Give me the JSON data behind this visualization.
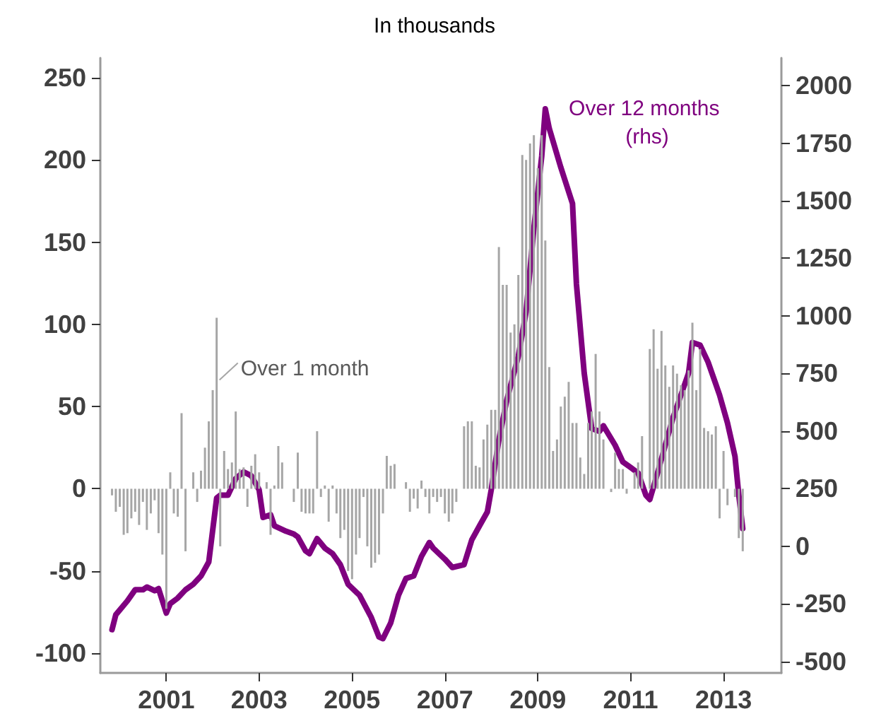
{
  "chart_data": {
    "type": "bar",
    "title": "In thousands",
    "x": [
      "1999-11",
      "1999-12",
      "2000-01",
      "2000-02",
      "2000-03",
      "2000-04",
      "2000-05",
      "2000-06",
      "2000-07",
      "2000-08",
      "2000-09",
      "2000-10",
      "2000-11",
      "2000-12",
      "2001-01",
      "2001-02",
      "2001-03",
      "2001-04",
      "2001-05",
      "2001-06",
      "2001-07",
      "2001-08",
      "2001-09",
      "2001-10",
      "2001-11",
      "2001-12",
      "2002-01",
      "2002-02",
      "2002-03",
      "2002-04",
      "2002-05",
      "2002-06",
      "2002-07",
      "2002-08",
      "2002-09",
      "2002-10",
      "2002-11",
      "2002-12",
      "2003-01",
      "2003-02",
      "2003-03",
      "2003-04",
      "2003-05",
      "2003-06",
      "2003-07",
      "2003-08",
      "2003-09",
      "2003-10",
      "2003-11",
      "2003-12",
      "2004-01",
      "2004-02",
      "2004-03",
      "2004-04",
      "2004-05",
      "2004-06",
      "2004-07",
      "2004-08",
      "2004-09",
      "2004-10",
      "2004-11",
      "2004-12",
      "2005-01",
      "2005-02",
      "2005-03",
      "2005-04",
      "2005-05",
      "2005-06",
      "2005-07",
      "2005-08",
      "2005-09",
      "2005-10",
      "2005-11",
      "2005-12",
      "2006-01",
      "2006-02",
      "2006-03",
      "2006-04",
      "2006-05",
      "2006-06",
      "2006-07",
      "2006-08",
      "2006-09",
      "2006-10",
      "2006-11",
      "2006-12",
      "2007-01",
      "2007-02",
      "2007-03",
      "2007-04",
      "2007-05",
      "2007-06",
      "2007-07",
      "2007-08",
      "2007-09",
      "2007-10",
      "2007-11",
      "2007-12",
      "2008-01",
      "2008-02",
      "2008-03",
      "2008-04",
      "2008-05",
      "2008-06",
      "2008-07",
      "2008-08",
      "2008-09",
      "2008-10",
      "2008-11",
      "2008-12",
      "2009-01",
      "2009-02",
      "2009-03",
      "2009-04",
      "2009-05",
      "2009-06",
      "2009-07",
      "2009-08",
      "2009-09",
      "2009-10",
      "2009-11",
      "2009-12",
      "2010-01",
      "2010-02",
      "2010-03",
      "2010-04",
      "2010-05",
      "2010-06",
      "2010-07",
      "2010-08",
      "2010-09",
      "2010-10",
      "2010-11",
      "2010-12",
      "2011-01",
      "2011-02",
      "2011-03",
      "2011-04",
      "2011-05",
      "2011-06",
      "2011-07",
      "2011-08",
      "2011-09",
      "2011-10",
      "2011-11",
      "2011-12",
      "2012-01",
      "2012-02",
      "2012-03",
      "2012-04",
      "2012-05",
      "2012-06",
      "2012-07",
      "2012-08",
      "2012-09",
      "2012-10",
      "2012-11",
      "2012-12",
      "2013-01",
      "2013-02",
      "2013-03",
      "2013-04",
      "2013-05",
      "2013-06"
    ],
    "xlim": [
      "1999-08",
      "2014-04"
    ],
    "xticks": [
      "2001",
      "2003",
      "2005",
      "2007",
      "2009",
      "2011",
      "2013"
    ],
    "ylim": [
      -112,
      262
    ],
    "yticks": [
      -100,
      -50,
      0,
      50,
      100,
      150,
      200,
      250
    ],
    "y2lim": [
      -550,
      2120
    ],
    "y2ticks": [
      -500,
      -250,
      0,
      250,
      500,
      750,
      1000,
      1250,
      1500,
      1750,
      2000
    ],
    "annotations": [
      {
        "text": "Over 1 month",
        "x": "2002-02",
        "y": 104
      }
    ],
    "series": [
      {
        "color": "#a6a6a6",
        "values": [
          -4,
          -14,
          -11,
          -28,
          -27,
          -18,
          -14,
          -22,
          -8,
          -25,
          -15,
          -7,
          -27,
          -40,
          -73,
          10,
          -15,
          -17,
          46,
          -38,
          0,
          10,
          -8,
          11,
          25,
          41,
          60,
          104,
          -35,
          23,
          12,
          16,
          47,
          12,
          13,
          -11,
          14,
          21,
          10,
          0,
          4,
          -28,
          2,
          26,
          16,
          0,
          0,
          -8,
          22,
          -14,
          -15,
          -15,
          -15,
          35,
          -5,
          2,
          -20,
          2,
          -15,
          -30,
          -25,
          -50,
          -55,
          -40,
          -30,
          -5,
          -35,
          -48,
          -45,
          -40,
          -15,
          20,
          14,
          15,
          0,
          0,
          4,
          -14,
          -6,
          -12,
          5,
          -5,
          -15,
          -5,
          -8,
          -5,
          -15,
          -20,
          -15,
          -8,
          0,
          38,
          41,
          41,
          14,
          13,
          30,
          39,
          48,
          48,
          147,
          124,
          124,
          95,
          100,
          130,
          203,
          200,
          210,
          215,
          195,
          215,
          151,
          74,
          23,
          30,
          50,
          56,
          65,
          40,
          40,
          19,
          9,
          40,
          47,
          82,
          47,
          30,
          0,
          -2,
          22,
          12,
          12,
          -3,
          0,
          10,
          16,
          32,
          0,
          85,
          97,
          73,
          96,
          75,
          62,
          75,
          70,
          63,
          60,
          72,
          101,
          60,
          85,
          37,
          35,
          33,
          38,
          -18,
          23,
          -10,
          0,
          -5,
          -30,
          -38
        ]
      },
      {
        "name": "Over 12 months (rhs)",
        "type": "line",
        "axis": "y2",
        "color": "#7f007f",
        "x": [
          "1999-11",
          "1999-12",
          "2000-03",
          "2000-05",
          "2000-07",
          "2000-08",
          "2000-10",
          "2000-11",
          "2001-01",
          "2001-02",
          "2001-04",
          "2001-06",
          "2001-08",
          "2001-10",
          "2001-12",
          "2002-02",
          "2002-03",
          "2002-05",
          "2002-07",
          "2002-09",
          "2002-11",
          "2003-01",
          "2003-02",
          "2003-04",
          "2003-05",
          "2003-08",
          "2003-10",
          "2003-11",
          "2004-01",
          "2004-02",
          "2004-04",
          "2004-06",
          "2004-08",
          "2004-10",
          "2004-12",
          "2005-03",
          "2005-06",
          "2005-08",
          "2005-09",
          "2005-11",
          "2006-01",
          "2006-03",
          "2006-05",
          "2006-07",
          "2006-09",
          "2006-10",
          "2007-01",
          "2007-03",
          "2007-06",
          "2007-08",
          "2007-10",
          "2007-12",
          "2008-01",
          "2008-03",
          "2008-05",
          "2008-08",
          "2008-10",
          "2008-12",
          "2009-02",
          "2009-03",
          "2009-04",
          "2009-07",
          "2009-10",
          "2009-11",
          "2010-01",
          "2010-03",
          "2010-05",
          "2010-06",
          "2010-09",
          "2010-11",
          "2011-01",
          "2011-03",
          "2011-05",
          "2011-06",
          "2011-08",
          "2011-10",
          "2011-12",
          "2012-02",
          "2012-04",
          "2012-05",
          "2012-07",
          "2012-09",
          "2012-11",
          "2012-12",
          "2013-02",
          "2013-04",
          "2013-05",
          "2013-06"
        ],
        "values": [
          -362,
          -297,
          -237,
          -189,
          -189,
          -177,
          -193,
          -184,
          -290,
          -249,
          -225,
          -189,
          -165,
          -129,
          -68,
          209,
          222,
          222,
          294,
          323,
          306,
          245,
          125,
          137,
          89,
          65,
          53,
          41,
          -20,
          -32,
          33,
          -8,
          -32,
          -80,
          -165,
          -213,
          -309,
          -394,
          -401,
          -333,
          -213,
          -140,
          -129,
          -44,
          16,
          -8,
          -56,
          -92,
          -80,
          28,
          89,
          149,
          246,
          463,
          632,
          825,
          1018,
          1380,
          1694,
          1899,
          1814,
          1645,
          1488,
          1138,
          752,
          511,
          499,
          523,
          439,
          366,
          342,
          318,
          222,
          203,
          318,
          439,
          559,
          656,
          752,
          885,
          873,
          800,
          704,
          656,
          535,
          390,
          222,
          77
        ]
      }
    ]
  }
}
